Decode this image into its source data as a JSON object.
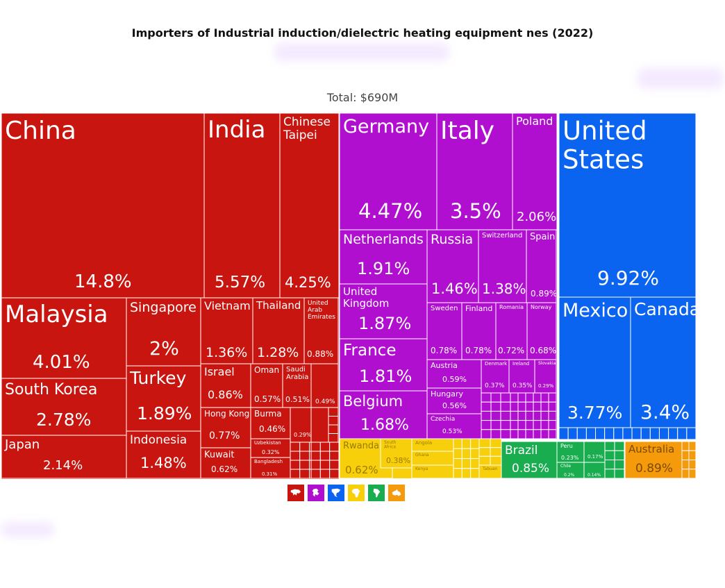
{
  "title": "Importers of Industrial induction/dielectric heating equipment nes (2022)",
  "total_label": "Total: $690M",
  "colors": {
    "Asia": "#c8150f",
    "Europe": "#b10fcf",
    "North America": "#0a64f0",
    "Africa": "#f7cf0a",
    "South America": "#19ad4f",
    "Oceania": "#f59a0a"
  },
  "legend": [
    {
      "name": "Asia",
      "icon": "asia-icon",
      "color": "#c8150f"
    },
    {
      "name": "Europe",
      "icon": "europe-icon",
      "color": "#b10fcf"
    },
    {
      "name": "North America",
      "icon": "north-america-icon",
      "color": "#0a64f0"
    },
    {
      "name": "Africa",
      "icon": "africa-icon",
      "color": "#f7cf0a"
    },
    {
      "name": "South America",
      "icon": "south-america-icon",
      "color": "#19ad4f"
    },
    {
      "name": "Oceania",
      "icon": "oceania-icon",
      "color": "#f59a0a"
    }
  ],
  "chart_data": {
    "type": "treemap",
    "title": "Importers of Industrial induction/dielectric heating equipment nes (2022)",
    "total": "$690M",
    "unit": "% of total imports",
    "items": [
      {
        "name": "China",
        "region": "Asia",
        "value": 14.8,
        "label": "14.8%"
      },
      {
        "name": "India",
        "region": "Asia",
        "value": 5.57,
        "label": "5.57%"
      },
      {
        "name": "Chinese Taipei",
        "region": "Asia",
        "value": 4.25,
        "label": "4.25%"
      },
      {
        "name": "Malaysia",
        "region": "Asia",
        "value": 4.01,
        "label": "4.01%"
      },
      {
        "name": "Singapore",
        "region": "Asia",
        "value": 2.0,
        "label": "2%"
      },
      {
        "name": "Vietnam",
        "region": "Asia",
        "value": 1.36,
        "label": "1.36%"
      },
      {
        "name": "Thailand",
        "region": "Asia",
        "value": 1.28,
        "label": "1.28%"
      },
      {
        "name": "United Arab Emirates",
        "region": "Asia",
        "value": 0.88,
        "label": "0.88%"
      },
      {
        "name": "South Korea",
        "region": "Asia",
        "value": 2.78,
        "label": "2.78%"
      },
      {
        "name": "Turkey",
        "region": "Asia",
        "value": 1.89,
        "label": "1.89%"
      },
      {
        "name": "Israel",
        "region": "Asia",
        "value": 0.86,
        "label": "0.86%"
      },
      {
        "name": "Oman",
        "region": "Asia",
        "value": 0.57,
        "label": "0.57%"
      },
      {
        "name": "Saudi Arabia",
        "region": "Asia",
        "value": 0.51,
        "label": "0.51%"
      },
      {
        "name": "",
        "region": "Asia",
        "value": 0.49,
        "label": "0.49%"
      },
      {
        "name": "Hong Kong",
        "region": "Asia",
        "value": 0.77,
        "label": "0.77%"
      },
      {
        "name": "Burma",
        "region": "Asia",
        "value": 0.46,
        "label": "0.46%"
      },
      {
        "name": "",
        "region": "Asia",
        "value": 0.29,
        "label": "0.29%"
      },
      {
        "name": "Japan",
        "region": "Asia",
        "value": 2.14,
        "label": "2.14%"
      },
      {
        "name": "Indonesia",
        "region": "Asia",
        "value": 1.48,
        "label": "1.48%"
      },
      {
        "name": "Kuwait",
        "region": "Asia",
        "value": 0.62,
        "label": "0.62%"
      },
      {
        "name": "Uzbekistan",
        "region": "Asia",
        "value": 0.32,
        "label": "0.32%"
      },
      {
        "name": "Bangladesh",
        "region": "Asia",
        "value": 0.31,
        "label": "0.31%"
      },
      {
        "name": "Germany",
        "region": "Europe",
        "value": 4.47,
        "label": "4.47%"
      },
      {
        "name": "Italy",
        "region": "Europe",
        "value": 3.5,
        "label": "3.5%"
      },
      {
        "name": "Poland",
        "region": "Europe",
        "value": 2.06,
        "label": "2.06%"
      },
      {
        "name": "Netherlands",
        "region": "Europe",
        "value": 1.91,
        "label": "1.91%"
      },
      {
        "name": "United Kingdom",
        "region": "Europe",
        "value": 1.87,
        "label": "1.87%"
      },
      {
        "name": "Russia",
        "region": "Europe",
        "value": 1.46,
        "label": "1.46%"
      },
      {
        "name": "Switzerland",
        "region": "Europe",
        "value": 1.38,
        "label": "1.38%"
      },
      {
        "name": "Spain",
        "region": "Europe",
        "value": 0.89,
        "label": "0.89%"
      },
      {
        "name": "Sweden",
        "region": "Europe",
        "value": 0.78,
        "label": "0.78%"
      },
      {
        "name": "Finland",
        "region": "Europe",
        "value": 0.78,
        "label": "0.78%"
      },
      {
        "name": "Romania",
        "region": "Europe",
        "value": 0.72,
        "label": "0.72%"
      },
      {
        "name": "Norway",
        "region": "Europe",
        "value": 0.68,
        "label": "0.68%"
      },
      {
        "name": "France",
        "region": "Europe",
        "value": 1.81,
        "label": "1.81%"
      },
      {
        "name": "Belgium",
        "region": "Europe",
        "value": 1.68,
        "label": "1.68%"
      },
      {
        "name": "Austria",
        "region": "Europe",
        "value": 0.59,
        "label": "0.59%"
      },
      {
        "name": "Denmark",
        "region": "Europe",
        "value": 0.37,
        "label": "0.37%"
      },
      {
        "name": "Ireland",
        "region": "Europe",
        "value": 0.35,
        "label": "0.35%"
      },
      {
        "name": "Slovakia",
        "region": "Europe",
        "value": 0.29,
        "label": "0.29%"
      },
      {
        "name": "Hungary",
        "region": "Europe",
        "value": 0.56,
        "label": "0.56%"
      },
      {
        "name": "Czechia",
        "region": "Europe",
        "value": 0.53,
        "label": "0.53%"
      },
      {
        "name": "United States",
        "region": "North America",
        "value": 9.92,
        "label": "9.92%"
      },
      {
        "name": "Mexico",
        "region": "North America",
        "value": 3.77,
        "label": "3.77%"
      },
      {
        "name": "Canada",
        "region": "North America",
        "value": 3.4,
        "label": "3.4%"
      },
      {
        "name": "Rwanda",
        "region": "Africa",
        "value": 0.62,
        "label": "0.62%"
      },
      {
        "name": "South Africa",
        "region": "Africa",
        "value": 0.38,
        "label": "0.38%"
      },
      {
        "name": "Angola",
        "region": "Africa",
        "value": null,
        "label": ""
      },
      {
        "name": "Ghana",
        "region": "Africa",
        "value": null,
        "label": ""
      },
      {
        "name": "Kenya",
        "region": "Africa",
        "value": null,
        "label": ""
      },
      {
        "name": "Tabuan",
        "region": "Africa",
        "value": null,
        "label": ""
      },
      {
        "name": "Brazil",
        "region": "South America",
        "value": 0.85,
        "label": "0.85%"
      },
      {
        "name": "Peru",
        "region": "South America",
        "value": 0.23,
        "label": "0.23%"
      },
      {
        "name": "",
        "region": "South America",
        "value": 0.17,
        "label": "0.17%"
      },
      {
        "name": "Chile",
        "region": "South America",
        "value": 0.2,
        "label": "0.2%"
      },
      {
        "name": "",
        "region": "South America",
        "value": 0.14,
        "label": "0.14%"
      },
      {
        "name": "Australia",
        "region": "Oceania",
        "value": 0.89,
        "label": "0.89%"
      }
    ]
  }
}
